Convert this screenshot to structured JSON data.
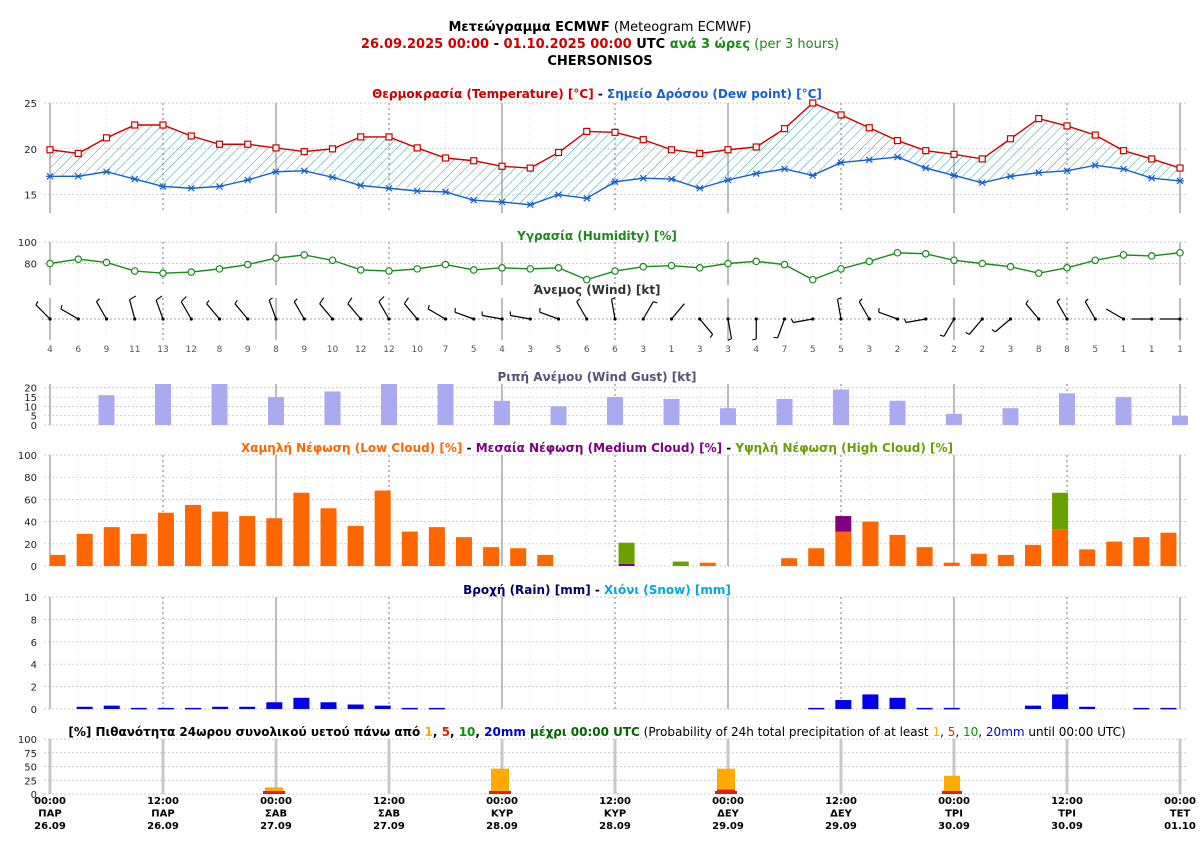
{
  "header": {
    "line1": {
      "gr": "Μετεώγραμμα ECMWF",
      "en": "(Meteogram ECMWF)"
    },
    "line2": {
      "start": "26.09.2025 00:00",
      "dash": " - ",
      "end": "01.10.2025 00:00",
      "utc": " UTC ",
      "step_gr": "ανά 3 ώρες",
      "step_en": " (per 3 hours)"
    },
    "location": "CHERSONISOS"
  },
  "colors": {
    "temperature": "#cc0000",
    "dewpoint": "#1560d0",
    "fill_hatch": "#2aa6a6",
    "humidity": "#1a8a1a",
    "gust": "#aaaaf0",
    "low_cloud": "#ff6600",
    "medium_cloud": "#800080",
    "high_cloud": "#6aa000",
    "rain": "#0000ee",
    "snow": "#00aadd",
    "prob_1": "#ffaa00",
    "prob_5": "#dd2200",
    "prob_10": "#009900",
    "prob_20": "#0000cc",
    "title_dark": "#000066",
    "wind_title": "#555577"
  },
  "panels": {
    "temp": {
      "t1": "Θερμοκρασία (Temperature) [°C]",
      "sep": " - ",
      "t2": "Σημείο Δρόσου (Dew point) [°C]"
    },
    "humidity": {
      "t": "Υγρασία (Humidity) [%]"
    },
    "wind": {
      "t": "Άνεμος (Wind) [kt]"
    },
    "gust": {
      "t": "Ριπή Ανέμου (Wind Gust) [kt]"
    },
    "cloud": {
      "t1": "Χαμηλή Νέφωση (Low Cloud) [%]",
      "t2": "Μεσαία Νέφωση (Medium Cloud) [%]",
      "t3": "Υψηλή Νέφωση (High Cloud) [%]",
      "sep": " - "
    },
    "rain": {
      "t1": "Βροχή (Rain) [mm]",
      "sep": " - ",
      "t2": "Χιόνι (Snow) [mm]"
    },
    "prob": {
      "gr_a": "[%] Πιθανότητα 24ωρου συνολικού υετού πάνω από ",
      "v1": "1",
      "c1": ", ",
      "v5": "5",
      "c2": ", ",
      "v10": "10",
      "c3": ", ",
      "v20": "20mm",
      "gr_b": " μέχρι 00:00 UTC",
      "en_a": " (Probability of 24h total precipitation of at least ",
      "en_v1": "1",
      "en_c1": ", ",
      "en_v5": "5",
      "en_c2": ", ",
      "en_v10": "10",
      "en_c3": ", ",
      "en_v20": "20mm",
      "en_b": " until 00:00 UTC)"
    }
  },
  "chart_data": {
    "type": "meteogram",
    "x_ticks": [
      {
        "time": "00:00",
        "day": "ΠΑΡ",
        "date": "26.09"
      },
      {
        "time": "12:00",
        "day": "ΠΑΡ",
        "date": "26.09"
      },
      {
        "time": "00:00",
        "day": "ΣΑΒ",
        "date": "27.09"
      },
      {
        "time": "12:00",
        "day": "ΣΑΒ",
        "date": "27.09"
      },
      {
        "time": "00:00",
        "day": "ΚΥΡ",
        "date": "28.09"
      },
      {
        "time": "12:00",
        "day": "ΚΥΡ",
        "date": "28.09"
      },
      {
        "time": "00:00",
        "day": "ΔΕΥ",
        "date": "29.09"
      },
      {
        "time": "12:00",
        "day": "ΔΕΥ",
        "date": "29.09"
      },
      {
        "time": "00:00",
        "day": "ΤΡΙ",
        "date": "30.09"
      },
      {
        "time": "12:00",
        "day": "ΤΡΙ",
        "date": "30.09"
      },
      {
        "time": "00:00",
        "day": "ΤΕΤ",
        "date": "01.10"
      }
    ],
    "temperature": {
      "yticks": [
        15,
        20,
        25
      ],
      "ylim": [
        13,
        25
      ],
      "values": [
        19.9,
        19.5,
        21.2,
        22.6,
        22.6,
        21.4,
        20.5,
        20.5,
        20.1,
        19.7,
        20.0,
        21.3,
        21.3,
        20.1,
        19.0,
        18.7,
        18.1,
        17.9,
        19.6,
        21.9,
        21.8,
        21.0,
        19.9,
        19.5,
        19.9,
        20.2,
        22.2,
        25.0,
        23.7,
        22.3,
        20.9,
        19.8,
        19.4,
        18.9,
        21.1,
        23.3,
        22.5,
        21.5,
        19.8,
        18.9,
        17.9
      ]
    },
    "dew_point": {
      "values": [
        17.0,
        17.0,
        17.5,
        16.7,
        15.9,
        15.7,
        15.9,
        16.6,
        17.5,
        17.6,
        16.9,
        16.0,
        15.7,
        15.4,
        15.3,
        14.4,
        14.2,
        13.9,
        15.0,
        14.6,
        16.4,
        16.8,
        16.7,
        15.7,
        16.6,
        17.3,
        17.8,
        17.1,
        18.5,
        18.8,
        19.1,
        17.9,
        17.1,
        16.3,
        17.0,
        17.4,
        17.6,
        18.2,
        17.8,
        16.8,
        16.5
      ]
    },
    "humidity": {
      "yticks": [
        80,
        100
      ],
      "ylim": [
        60,
        100
      ],
      "values": [
        80,
        84,
        81,
        73,
        71,
        72,
        75,
        79,
        85,
        88,
        83,
        74,
        73,
        75,
        79,
        74,
        76,
        75,
        76,
        65,
        73,
        77,
        78,
        76,
        80,
        82,
        79,
        65,
        75,
        82,
        90,
        89,
        83,
        80,
        77,
        71,
        76,
        83,
        88,
        87,
        90
      ]
    },
    "wind": {
      "speeds": [
        4,
        6,
        9,
        11,
        13,
        12,
        8,
        9,
        8,
        9,
        10,
        12,
        12,
        10,
        7,
        5,
        4,
        3,
        5,
        6,
        6,
        3,
        1,
        3,
        3,
        4,
        7,
        5,
        5,
        3,
        2,
        2,
        2,
        2,
        3,
        8,
        8,
        5,
        1,
        1,
        1
      ],
      "directions_deg": [
        315,
        300,
        330,
        345,
        340,
        330,
        320,
        320,
        340,
        330,
        320,
        320,
        330,
        320,
        300,
        290,
        280,
        280,
        290,
        330,
        350,
        30,
        40,
        140,
        170,
        180,
        200,
        260,
        350,
        330,
        290,
        260,
        210,
        220,
        230,
        320,
        330,
        330,
        300,
        270,
        270
      ]
    },
    "gust": {
      "yticks": [
        0,
        5,
        10,
        15,
        20
      ],
      "ylim": [
        0,
        22
      ],
      "values": [
        16,
        22,
        22,
        15,
        18,
        22,
        22,
        13,
        10,
        15,
        14,
        9,
        14,
        19,
        13,
        6,
        9,
        17,
        15,
        5
      ]
    },
    "clouds": {
      "yticks": [
        0,
        20,
        40,
        60,
        80,
        100
      ],
      "ylim": [
        0,
        100
      ],
      "series": [
        {
          "name": "Low",
          "values": [
            10,
            29,
            35,
            29,
            48,
            55,
            49,
            45,
            43,
            66,
            52,
            36,
            68,
            31,
            35,
            26,
            17,
            16,
            10,
            0,
            0,
            0,
            0,
            0,
            3,
            0,
            0,
            7,
            16,
            31,
            40,
            28,
            17,
            3,
            11,
            10,
            19,
            33,
            15,
            22,
            26,
            30
          ]
        },
        {
          "name": "Medium",
          "values": [
            0,
            0,
            0,
            0,
            0,
            0,
            0,
            0,
            0,
            0,
            0,
            0,
            0,
            0,
            0,
            0,
            0,
            0,
            0,
            0,
            0,
            2,
            0,
            0,
            0,
            0,
            0,
            0,
            0,
            14,
            0,
            0,
            0,
            0,
            0,
            0,
            0,
            0,
            0,
            0,
            0,
            0
          ]
        },
        {
          "name": "High",
          "values": [
            0,
            0,
            0,
            0,
            0,
            0,
            0,
            0,
            0,
            0,
            0,
            0,
            0,
            0,
            0,
            0,
            0,
            0,
            0,
            0,
            0,
            19,
            0,
            4,
            0,
            0,
            0,
            0,
            0,
            0,
            0,
            0,
            0,
            0,
            0,
            0,
            0,
            33,
            0,
            0,
            0,
            0
          ]
        }
      ]
    },
    "rain": {
      "yticks": [
        0,
        2,
        4,
        6,
        8,
        10
      ],
      "ylim": [
        0,
        10
      ],
      "values": [
        0,
        0.2,
        0.3,
        0.1,
        0.1,
        0.1,
        0.2,
        0.2,
        0.6,
        1.0,
        0.6,
        0.4,
        0.3,
        0.1,
        0.1,
        0,
        0,
        0,
        0,
        0,
        0,
        0,
        0,
        0,
        0,
        0,
        0,
        0,
        0.1,
        0.8,
        1.3,
        1.0,
        0.1,
        0.1,
        0,
        0,
        0.3,
        1.3,
        0.2,
        0,
        0.1,
        0.1
      ]
    },
    "snow": {
      "values": []
    },
    "probability": {
      "yticks": [
        0,
        25,
        50,
        75,
        100
      ],
      "ylim": [
        0,
        100
      ],
      "days": [
        {
          "p1": 12,
          "p5": 0,
          "p10": 0,
          "p20": 0
        },
        {
          "p1": 46,
          "p5": 3,
          "p10": 0,
          "p20": 0
        },
        {
          "p1": 46,
          "p5": 8,
          "p10": 3,
          "p20": 0
        },
        {
          "p1": 33,
          "p5": 4,
          "p10": 0,
          "p20": 0
        }
      ]
    }
  }
}
